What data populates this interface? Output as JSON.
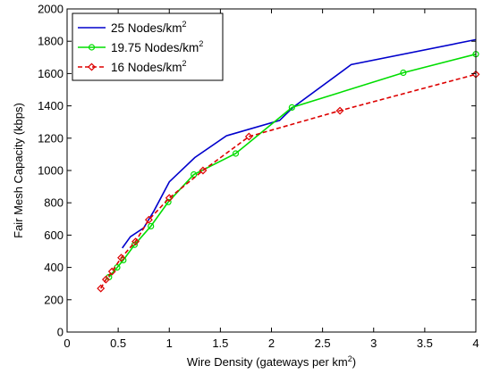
{
  "chart_data": {
    "type": "line",
    "title": "",
    "xlabel": "Wire Density (gateways per km",
    "xlabel_sup": "2",
    "xlabel_end": ")",
    "ylabel": "Fair Mesh Capacity (kbps)",
    "xlim": [
      0,
      4
    ],
    "ylim": [
      0,
      2000
    ],
    "xticks": [
      0,
      0.5,
      1,
      1.5,
      2,
      2.5,
      3,
      3.5,
      4
    ],
    "xtick_labels": [
      "0",
      "0.5",
      "1",
      "1.5",
      "2",
      "2.5",
      "3",
      "3.5",
      "4"
    ],
    "yticks": [
      0,
      200,
      400,
      600,
      800,
      1000,
      1200,
      1400,
      1600,
      1800,
      2000
    ],
    "ytick_labels": [
      "0",
      "200",
      "400",
      "600",
      "800",
      "1000",
      "1200",
      "1400",
      "1600",
      "1800",
      "2000"
    ],
    "grid": false,
    "legend_position": "top-left",
    "series": [
      {
        "name": "25 Nodes/km",
        "name_sup": "2",
        "color": "#0000cc",
        "line_style": "solid",
        "marker": "none",
        "x": [
          0.54,
          0.62,
          0.75,
          0.85,
          1.0,
          1.25,
          1.56,
          2.08,
          2.21,
          2.78,
          4.0
        ],
        "y": [
          520,
          590,
          645,
          750,
          930,
          1080,
          1215,
          1310,
          1390,
          1655,
          1810
        ]
      },
      {
        "name": "19.75 Nodes/km",
        "name_sup": "2",
        "color": "#00dd00",
        "line_style": "solid",
        "marker": "circle",
        "x": [
          0.41,
          0.49,
          0.55,
          0.66,
          0.82,
          0.99,
          1.24,
          1.65,
          2.2,
          3.29,
          4.0
        ],
        "y": [
          340,
          400,
          445,
          540,
          655,
          805,
          975,
          1105,
          1390,
          1605,
          1720
        ]
      },
      {
        "name": "16 Nodes/km",
        "name_sup": "2",
        "color": "#dd0000",
        "line_style": "dashed",
        "marker": "diamond",
        "x": [
          0.33,
          0.38,
          0.44,
          0.53,
          0.67,
          0.8,
          1.0,
          1.33,
          1.78,
          2.67,
          4.0
        ],
        "y": [
          270,
          325,
          375,
          460,
          560,
          695,
          830,
          1000,
          1210,
          1370,
          1595
        ]
      }
    ]
  }
}
